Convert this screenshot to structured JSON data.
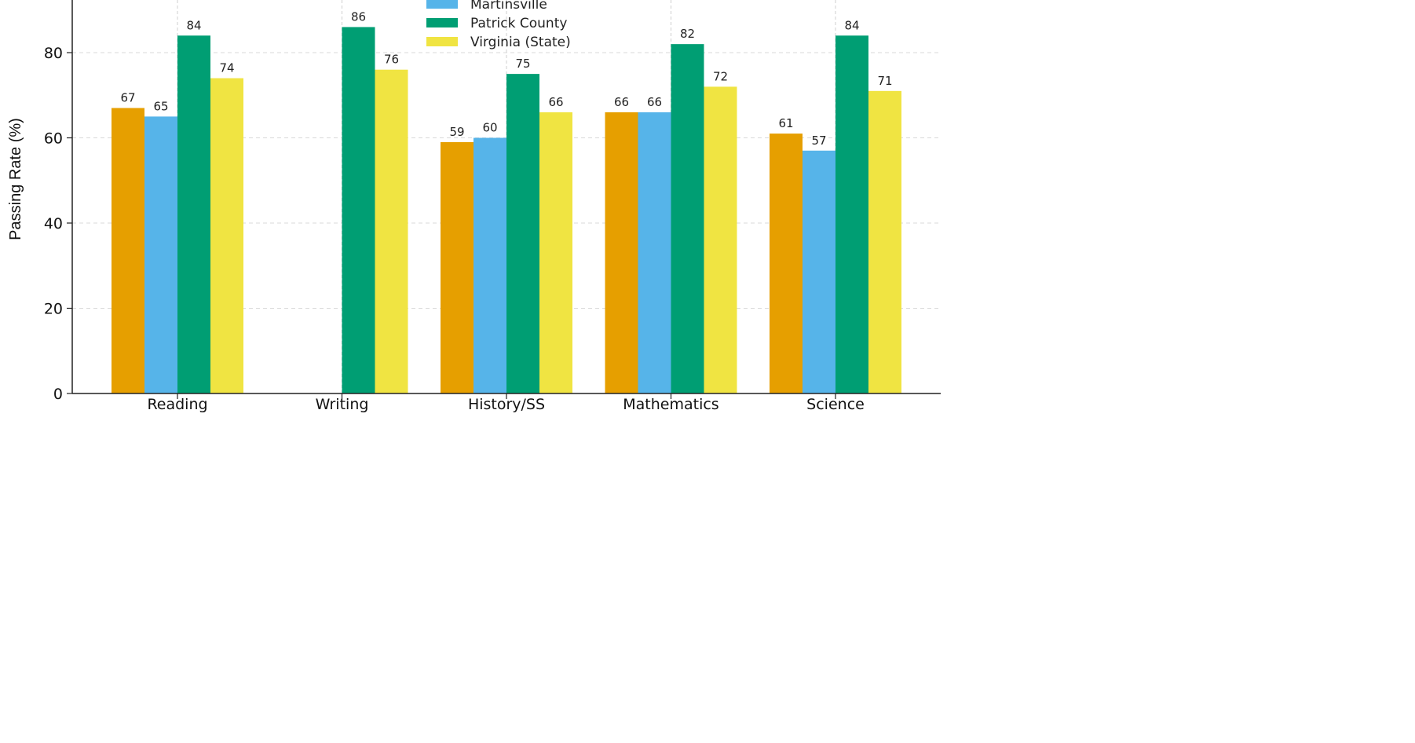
{
  "chart_data": {
    "type": "bar",
    "title": "",
    "xlabel": "",
    "ylabel": "Passing Rate (%)",
    "categories": [
      "Reading",
      "Writing",
      "History/SS",
      "Mathematics",
      "Science"
    ],
    "series": [
      {
        "name": "",
        "color": "#E69F00",
        "values": [
          67,
          null,
          59,
          66,
          61
        ]
      },
      {
        "name": "Martinsville",
        "color": "#56B4E9",
        "values": [
          65,
          null,
          60,
          66,
          57
        ]
      },
      {
        "name": "Patrick County",
        "color": "#009E73",
        "values": [
          84,
          86,
          75,
          82,
          84
        ]
      },
      {
        "name": "Virginia (State)",
        "color": "#F0E442",
        "values": [
          74,
          76,
          66,
          72,
          71
        ]
      }
    ],
    "yticks": [
      0,
      20,
      40,
      60,
      80
    ],
    "ylim": [
      0,
      92
    ],
    "grid": true,
    "legend_position": "top-center"
  }
}
